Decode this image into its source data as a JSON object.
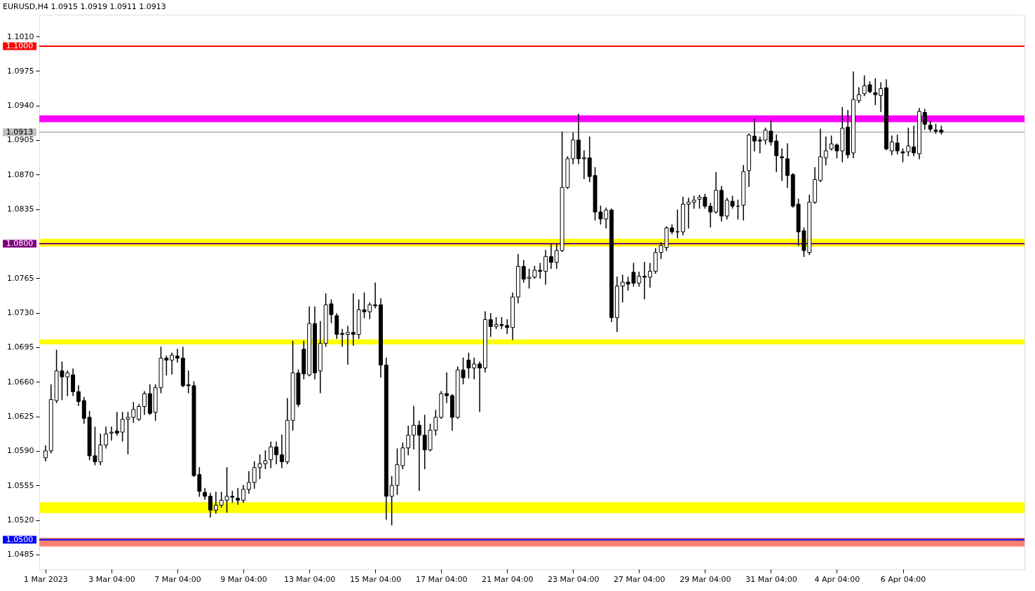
{
  "chart_data": {
    "type": "candlestick",
    "title": "EURUSD,H4  1.0915 1.0919 1.0911 1.0913",
    "color": "#000000",
    "categories": [
      "1 Mar 2023",
      null,
      null,
      null,
      null,
      null,
      null,
      null,
      null,
      null,
      null,
      null,
      "3 Mar 04:00",
      null,
      null,
      null,
      null,
      null,
      null,
      null,
      null,
      null,
      null,
      null,
      "7 Mar 04:00",
      null,
      null,
      null,
      null,
      null,
      null,
      null,
      null,
      null,
      null,
      null,
      "9 Mar 04:00",
      null,
      null,
      null,
      null,
      null,
      null,
      null,
      null,
      null,
      null,
      null,
      "13 Mar 04:00",
      null,
      null,
      null,
      null,
      null,
      null,
      null,
      null,
      null,
      null,
      null,
      "15 Mar 04:00",
      null,
      null,
      null,
      null,
      null,
      null,
      null,
      null,
      null,
      null,
      null,
      "17 Mar 04:00",
      null,
      null,
      null,
      null,
      null,
      null,
      null,
      null,
      null,
      null,
      null,
      "21 Mar 04:00",
      null,
      null,
      null,
      null,
      null,
      null,
      null,
      null,
      null,
      null,
      null,
      "23 Mar 04:00",
      null,
      null,
      null,
      null,
      null,
      null,
      null,
      null,
      null,
      null,
      null,
      "27 Mar 04:00",
      null,
      null,
      null,
      null,
      null,
      null,
      null,
      null,
      null,
      null,
      null,
      "29 Mar 04:00",
      null,
      null,
      null,
      null,
      null,
      null,
      null,
      null,
      null,
      null,
      null,
      "31 Mar 04:00",
      null,
      null,
      null,
      null,
      null,
      null,
      null,
      null,
      null,
      null,
      null,
      "4 Apr 04:00",
      null,
      null,
      null,
      null,
      null,
      null,
      null,
      null,
      null,
      null,
      null,
      "6 Apr 04:00",
      null,
      null,
      null,
      null,
      null,
      null,
      null
    ],
    "ohlc": [
      [
        1.0583,
        1.0595,
        1.058,
        1.059
      ],
      [
        1.059,
        1.0657,
        1.0588,
        1.0642
      ],
      [
        1.0641,
        1.0692,
        1.0639,
        1.0671
      ],
      [
        1.0671,
        1.068,
        1.0642,
        1.0665
      ],
      [
        1.0665,
        1.0671,
        1.0646,
        1.0669
      ],
      [
        1.0667,
        1.0673,
        1.0646,
        1.065
      ],
      [
        1.065,
        1.0656,
        1.0636,
        1.064
      ],
      [
        1.0641,
        1.0644,
        1.0618,
        1.0623
      ],
      [
        1.0624,
        1.063,
        1.0581,
        1.0585
      ],
      [
        1.0585,
        1.0614,
        1.0576,
        1.0579
      ],
      [
        1.0579,
        1.0607,
        1.0576,
        1.0596
      ],
      [
        1.0596,
        1.0614,
        1.0593,
        1.0607
      ],
      [
        1.0608,
        1.0614,
        1.0601,
        1.0609
      ],
      [
        1.061,
        1.0629,
        1.0606,
        1.0608
      ],
      [
        1.0609,
        1.0629,
        1.06,
        1.0622
      ],
      [
        1.0622,
        1.0629,
        1.0587,
        1.0624
      ],
      [
        1.0624,
        1.0639,
        1.0619,
        1.0632
      ],
      [
        1.0622,
        1.0637,
        1.0621,
        1.0635
      ],
      [
        1.0635,
        1.065,
        1.0627,
        1.0648
      ],
      [
        1.0648,
        1.0657,
        1.0627,
        1.0628
      ],
      [
        1.0629,
        1.0657,
        1.0621,
        1.0654
      ],
      [
        1.0654,
        1.0695,
        1.0649,
        1.0684
      ],
      [
        1.0684,
        1.0686,
        1.0667,
        1.0682
      ],
      [
        1.0682,
        1.0689,
        1.0668,
        1.0687
      ],
      [
        1.0686,
        1.0693,
        1.068,
        1.0684
      ],
      [
        1.0684,
        1.0695,
        1.0655,
        1.0656
      ],
      [
        1.0657,
        1.0671,
        1.0649,
        1.0656
      ],
      [
        1.0656,
        1.066,
        1.0564,
        1.0565
      ],
      [
        1.0566,
        1.0573,
        1.0544,
        1.0549
      ],
      [
        1.0548,
        1.0552,
        1.0541,
        1.0544
      ],
      [
        1.0544,
        1.0547,
        1.0523,
        1.053
      ],
      [
        1.053,
        1.0548,
        1.0527,
        1.0535
      ],
      [
        1.0535,
        1.0548,
        1.0533,
        1.054
      ],
      [
        1.054,
        1.0573,
        1.0528,
        1.0544
      ],
      [
        1.0544,
        1.0549,
        1.0538,
        1.0543
      ],
      [
        1.0542,
        1.0552,
        1.0536,
        1.054
      ],
      [
        1.054,
        1.0555,
        1.0538,
        1.0551
      ],
      [
        1.0551,
        1.0569,
        1.0547,
        1.0558
      ],
      [
        1.0558,
        1.0579,
        1.0552,
        1.0573
      ],
      [
        1.0573,
        1.0586,
        1.0562,
        1.0577
      ],
      [
        1.0577,
        1.059,
        1.0572,
        1.058
      ],
      [
        1.0581,
        1.0599,
        1.0573,
        1.0594
      ],
      [
        1.0594,
        1.0599,
        1.0577,
        1.0586
      ],
      [
        1.0586,
        1.0606,
        1.0573,
        1.0579
      ],
      [
        1.0579,
        1.0643,
        1.0577,
        1.0621
      ],
      [
        1.0621,
        1.0701,
        1.0611,
        1.0669
      ],
      [
        1.0669,
        1.0672,
        1.0635,
        1.0637
      ],
      [
        1.0693,
        1.0701,
        1.0663,
        1.0668
      ],
      [
        1.0667,
        1.0736,
        1.0666,
        1.0719
      ],
      [
        1.0719,
        1.0736,
        1.0663,
        1.0669
      ],
      [
        1.0671,
        1.0721,
        1.0649,
        1.0699
      ],
      [
        1.0699,
        1.0749,
        1.0696,
        1.0738
      ],
      [
        1.0739,
        1.0743,
        1.072,
        1.0728
      ],
      [
        1.0727,
        1.0729,
        1.0704,
        1.0708
      ],
      [
        1.0709,
        1.0713,
        1.0696,
        1.0708
      ],
      [
        1.0708,
        1.0716,
        1.0678,
        1.071
      ],
      [
        1.071,
        1.0749,
        1.0697,
        1.0708
      ],
      [
        1.0708,
        1.0743,
        1.0704,
        1.0733
      ],
      [
        1.0733,
        1.075,
        1.0725,
        1.0731
      ],
      [
        1.0731,
        1.074,
        1.0724,
        1.0738
      ],
      [
        1.0738,
        1.076,
        1.0735,
        1.0737
      ],
      [
        1.0738,
        1.0744,
        1.0665,
        1.0677
      ],
      [
        1.0677,
        1.0684,
        1.0521,
        1.0544
      ],
      [
        1.0544,
        1.0564,
        1.0515,
        1.0555
      ],
      [
        1.0555,
        1.0592,
        1.0546,
        1.0576
      ],
      [
        1.0575,
        1.0598,
        1.0572,
        1.0593
      ],
      [
        1.0593,
        1.0615,
        1.0586,
        1.0606
      ],
      [
        1.0606,
        1.0635,
        1.0592,
        1.0616
      ],
      [
        1.0616,
        1.062,
        1.055,
        1.0606
      ],
      [
        1.0606,
        1.0626,
        1.0572,
        1.0591
      ],
      [
        1.0591,
        1.0617,
        1.059,
        1.0611
      ],
      [
        1.0611,
        1.0631,
        1.0606,
        1.0624
      ],
      [
        1.0624,
        1.065,
        1.0623,
        1.0648
      ],
      [
        1.0648,
        1.0669,
        1.0639,
        1.0646
      ],
      [
        1.0646,
        1.0647,
        1.0611,
        1.0624
      ],
      [
        1.0624,
        1.0675,
        1.0623,
        1.0672
      ],
      [
        1.0672,
        1.0684,
        1.0658,
        1.0664
      ],
      [
        1.0682,
        1.0689,
        1.0664,
        1.0674
      ],
      [
        1.0674,
        1.0684,
        1.0663,
        1.0678
      ],
      [
        1.0678,
        1.068,
        1.063,
        1.0674
      ],
      [
        1.0674,
        1.0731,
        1.067,
        1.0723
      ],
      [
        1.0723,
        1.0729,
        1.0706,
        1.0716
      ],
      [
        1.0716,
        1.0725,
        1.0714,
        1.0718
      ],
      [
        1.0718,
        1.0725,
        1.0714,
        1.0717
      ],
      [
        1.0717,
        1.0723,
        1.0709,
        1.0715
      ],
      [
        1.0715,
        1.075,
        1.0703,
        1.0746
      ],
      [
        1.0746,
        1.0789,
        1.074,
        1.0777
      ],
      [
        1.0777,
        1.0783,
        1.0761,
        1.0764
      ],
      [
        1.0765,
        1.0774,
        1.0755,
        1.0766
      ],
      [
        1.0766,
        1.0777,
        1.0765,
        1.0773
      ],
      [
        1.0773,
        1.078,
        1.0765,
        1.0772
      ],
      [
        1.0772,
        1.0793,
        1.0759,
        1.0787
      ],
      [
        1.0787,
        1.0799,
        1.0775,
        1.0781
      ],
      [
        1.0781,
        1.0799,
        1.0775,
        1.0793
      ],
      [
        1.0793,
        1.0913,
        1.0792,
        1.0857
      ],
      [
        1.0857,
        1.0888,
        1.0856,
        1.0886
      ],
      [
        1.0886,
        1.0912,
        1.0881,
        1.0905
      ],
      [
        1.0905,
        1.0931,
        1.0881,
        1.0886
      ],
      [
        1.0886,
        1.0894,
        1.0866,
        1.0887
      ],
      [
        1.0887,
        1.0908,
        1.0863,
        1.0868
      ],
      [
        1.0869,
        1.0877,
        1.0824,
        1.0832
      ],
      [
        1.0832,
        1.0838,
        1.082,
        1.0825
      ],
      [
        1.0825,
        1.0836,
        1.0816,
        1.0834
      ],
      [
        1.0834,
        1.0835,
        1.0721,
        1.0725
      ],
      [
        1.0725,
        1.0766,
        1.0711,
        1.0757
      ],
      [
        1.0757,
        1.0768,
        1.0741,
        1.0761
      ],
      [
        1.0761,
        1.0766,
        1.0753,
        1.0759
      ],
      [
        1.0771,
        1.078,
        1.0757,
        1.076
      ],
      [
        1.076,
        1.0771,
        1.0757,
        1.0767
      ],
      [
        1.0767,
        1.0781,
        1.0744,
        1.0766
      ],
      [
        1.0766,
        1.078,
        1.0756,
        1.0772
      ],
      [
        1.0772,
        1.0795,
        1.077,
        1.0791
      ],
      [
        1.0791,
        1.0801,
        1.0785,
        1.0798
      ],
      [
        1.0796,
        1.0817,
        1.0793,
        1.0816
      ],
      [
        1.0816,
        1.0819,
        1.081,
        1.0812
      ],
      [
        1.0812,
        1.0834,
        1.0806,
        1.0812
      ],
      [
        1.0812,
        1.0847,
        1.0809,
        1.084
      ],
      [
        1.084,
        1.0846,
        1.0816,
        1.0842
      ],
      [
        1.0842,
        1.0848,
        1.0836,
        1.0844
      ],
      [
        1.0845,
        1.0849,
        1.0836,
        1.0847
      ],
      [
        1.0847,
        1.085,
        1.0836,
        1.0838
      ],
      [
        1.0838,
        1.0841,
        1.0817,
        1.0832
      ],
      [
        1.0832,
        1.0872,
        1.0831,
        1.0854
      ],
      [
        1.0854,
        1.0858,
        1.0823,
        1.0828
      ],
      [
        1.0828,
        1.0846,
        1.0825,
        1.0844
      ],
      [
        1.0843,
        1.0848,
        1.0836,
        1.0838
      ],
      [
        1.0838,
        1.0844,
        1.0825,
        1.0838
      ],
      [
        1.0839,
        1.0879,
        1.0824,
        1.0873
      ],
      [
        1.0874,
        1.0911,
        1.0858,
        1.091
      ],
      [
        1.0909,
        1.0926,
        1.0894,
        1.0904
      ],
      [
        1.0905,
        1.0908,
        1.0892,
        1.0904
      ],
      [
        1.0905,
        1.0917,
        1.0901,
        1.0915
      ],
      [
        1.0914,
        1.0925,
        1.09,
        1.0903
      ],
      [
        1.0904,
        1.091,
        1.0873,
        1.0889
      ],
      [
        1.0888,
        1.0896,
        1.0864,
        1.0887
      ],
      [
        1.0886,
        1.0901,
        1.0857,
        1.0869
      ],
      [
        1.087,
        1.0871,
        1.0837,
        1.0838
      ],
      [
        1.084,
        1.0845,
        1.0798,
        1.0812
      ],
      [
        1.0813,
        1.0816,
        1.0787,
        1.0793
      ],
      [
        1.0791,
        1.0849,
        1.0789,
        1.0842
      ],
      [
        1.0842,
        1.0877,
        1.0841,
        1.0865
      ],
      [
        1.0864,
        1.0916,
        1.0863,
        1.0888
      ],
      [
        1.0887,
        1.0908,
        1.088,
        1.0894
      ],
      [
        1.0896,
        1.0909,
        1.0895,
        1.0901
      ],
      [
        1.09,
        1.0901,
        1.0887,
        1.0894
      ],
      [
        1.0894,
        1.0938,
        1.0883,
        1.0917
      ],
      [
        1.0918,
        1.0935,
        1.0887,
        1.089
      ],
      [
        1.0892,
        1.0974,
        1.0887,
        1.0946
      ],
      [
        1.0945,
        1.0958,
        1.0943,
        1.0951
      ],
      [
        1.0952,
        1.097,
        1.095,
        1.096
      ],
      [
        1.0961,
        1.0964,
        1.0953,
        1.0954
      ],
      [
        1.0953,
        1.0967,
        1.0941,
        1.0951
      ],
      [
        1.095,
        1.0963,
        1.0934,
        1.0957
      ],
      [
        1.0958,
        1.0966,
        1.0895,
        1.0896
      ],
      [
        1.0894,
        1.0909,
        1.089,
        1.0903
      ],
      [
        1.0902,
        1.091,
        1.0891,
        1.0894
      ],
      [
        1.0893,
        1.0896,
        1.0883,
        1.0892
      ],
      [
        1.0893,
        1.0917,
        1.0889,
        1.0899
      ],
      [
        1.0898,
        1.0919,
        1.0889,
        1.0892
      ],
      [
        1.0891,
        1.0937,
        1.0886,
        1.0934
      ],
      [
        1.0933,
        1.0936,
        1.0916,
        1.0921
      ],
      [
        1.092,
        1.0924,
        1.0914,
        1.0916
      ],
      [
        1.0915,
        1.0921,
        1.0912,
        1.0914
      ],
      [
        1.0915,
        1.0919,
        1.0911,
        1.0913
      ]
    ],
    "ylim": [
      1.047,
      1.1032
    ],
    "yticks": [
      {
        "value": 1.101,
        "label": "1.1010"
      },
      {
        "value": 1.0975,
        "label": "1.0975"
      },
      {
        "value": 1.094,
        "label": "1.0940"
      },
      {
        "value": 1.0905,
        "label": "1.0905"
      },
      {
        "value": 1.087,
        "label": "1.0870"
      },
      {
        "value": 1.0835,
        "label": "1.0835"
      },
      {
        "value": 1.0765,
        "label": "1.0765"
      },
      {
        "value": 1.073,
        "label": "1.0730"
      },
      {
        "value": 1.0695,
        "label": "1.0695"
      },
      {
        "value": 1.066,
        "label": "1.0660"
      },
      {
        "value": 1.0625,
        "label": "1.0625"
      },
      {
        "value": 1.059,
        "label": "1.0590"
      },
      {
        "value": 1.0555,
        "label": "1.0555"
      },
      {
        "value": 1.052,
        "label": "1.0520"
      },
      {
        "value": 1.0485,
        "label": "1.0485"
      }
    ],
    "bands": [
      {
        "axis": "y",
        "from": 1.0923,
        "to": 1.093,
        "color": "#ff00ff"
      },
      {
        "axis": "y",
        "from": 1.0797,
        "to": 1.0805,
        "color": "#ffff00"
      },
      {
        "axis": "y",
        "from": 1.0698,
        "to": 1.0703,
        "color": "#ffff00"
      },
      {
        "axis": "y",
        "from": 1.0527,
        "to": 1.0538,
        "color": "#ffff00"
      },
      {
        "axis": "y",
        "from": 1.0493,
        "to": 1.0502,
        "color": "#fa8072"
      }
    ],
    "ref_lines": [
      {
        "axis": "y",
        "value": 1.1,
        "label": "1.1000",
        "color": "#ff0000"
      },
      {
        "axis": "y",
        "value": 1.0913,
        "label": "1.0913",
        "color": "#c0c0c0"
      },
      {
        "axis": "y",
        "value": 1.08,
        "label": "1.0800",
        "color": "#800080"
      },
      {
        "axis": "y",
        "value": 1.05,
        "label": "1.0500",
        "color": "#0000ff"
      }
    ]
  }
}
